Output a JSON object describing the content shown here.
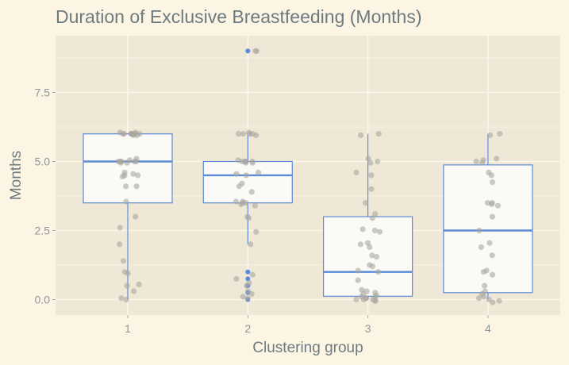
{
  "chart_data": {
    "type": "boxplot",
    "title": "Duration of Exclusive Breastfeeding (Months)",
    "xlabel": "Clustering group",
    "ylabel": "Months",
    "categories": [
      "1",
      "2",
      "3",
      "4"
    ],
    "ylim": [
      -0.55,
      9.3
    ],
    "yticks": [
      0.0,
      2.5,
      5.0,
      7.5
    ],
    "ytick_labels": [
      "0.0",
      "2.5",
      "5.0",
      "7.5"
    ],
    "boxes": [
      {
        "group": "1",
        "q1": 3.5,
        "median": 5.0,
        "q3": 6.0,
        "whisker_low": 0.0,
        "whisker_high": 6.0,
        "outliers": []
      },
      {
        "group": "2",
        "q1": 3.5,
        "median": 4.5,
        "q3": 5.0,
        "whisker_low": 2.0,
        "whisker_high": 6.0,
        "outliers": [
          1.0,
          0.75,
          0.5,
          0.25,
          0.0,
          9.0
        ]
      },
      {
        "group": "3",
        "q1": 0.12,
        "median": 1.0,
        "q3": 3.0,
        "whisker_low": 0.0,
        "whisker_high": 6.0,
        "outliers": []
      },
      {
        "group": "4",
        "q1": 0.25,
        "median": 2.5,
        "q3": 4.875,
        "whisker_low": 0.0,
        "whisker_high": 6.0,
        "outliers": []
      }
    ],
    "points": [
      {
        "group": 1,
        "values": [
          6.0,
          6.0,
          6.0,
          6.0,
          6.0,
          6.0,
          6.05,
          5.95,
          6.0,
          6.05,
          5.95,
          6.0,
          6.0,
          5.0,
          5.05,
          5.0,
          4.95,
          5.0,
          5.1,
          5.0,
          5.0,
          4.95,
          4.55,
          4.5,
          4.45,
          4.6,
          4.5,
          4.1,
          4.1,
          3.55,
          3.0,
          2.6,
          2.0,
          1.4,
          1.0,
          0.95,
          0.55,
          0.5,
          0.3,
          0.05,
          0.0
        ]
      },
      {
        "group": 2,
        "values": [
          9.0,
          9.0,
          6.0,
          6.05,
          5.95,
          6.0,
          6.0,
          6.0,
          5.05,
          5.0,
          5.0,
          4.95,
          5.0,
          5.0,
          5.0,
          4.95,
          4.6,
          4.5,
          4.55,
          4.2,
          4.1,
          3.9,
          3.55,
          3.55,
          3.5,
          3.5,
          3.45,
          3.4,
          3.0,
          2.95,
          2.45,
          2.0,
          0.9,
          0.75,
          0.6,
          0.5,
          0.3,
          0.2,
          0.1,
          0.05
        ]
      },
      {
        "group": 3,
        "values": [
          6.0,
          5.95,
          5.1,
          5.0,
          4.95,
          4.6,
          4.5,
          4.0,
          3.5,
          3.1,
          2.95,
          2.55,
          2.5,
          2.45,
          2.05,
          2.0,
          1.9,
          1.6,
          1.55,
          1.25,
          1.2,
          1.05,
          1.0,
          0.7,
          0.35,
          0.3,
          0.25,
          0.2,
          0.15,
          0.1,
          0.1,
          0.05,
          0.05,
          0.0,
          0.0,
          0.0,
          -0.05,
          -0.05
        ]
      },
      {
        "group": 4,
        "values": [
          6.0,
          5.95,
          5.1,
          5.05,
          5.0,
          4.95,
          4.6,
          4.5,
          4.25,
          3.5,
          3.5,
          3.45,
          3.4,
          3.0,
          2.5,
          2.05,
          1.9,
          1.6,
          1.05,
          1.0,
          0.9,
          0.5,
          0.3,
          0.2,
          0.1,
          0.05,
          0.0,
          -0.05,
          -0.1
        ]
      }
    ],
    "colors": {
      "panel": "#f0e8d6",
      "grid": "#fbf6ea",
      "box_fill": "#fbfaf7",
      "box_stroke": "#5b8ad6",
      "median": "#5b8ad6",
      "jitter": "#a8a6a0",
      "outlier": "#5b8ad6"
    }
  }
}
